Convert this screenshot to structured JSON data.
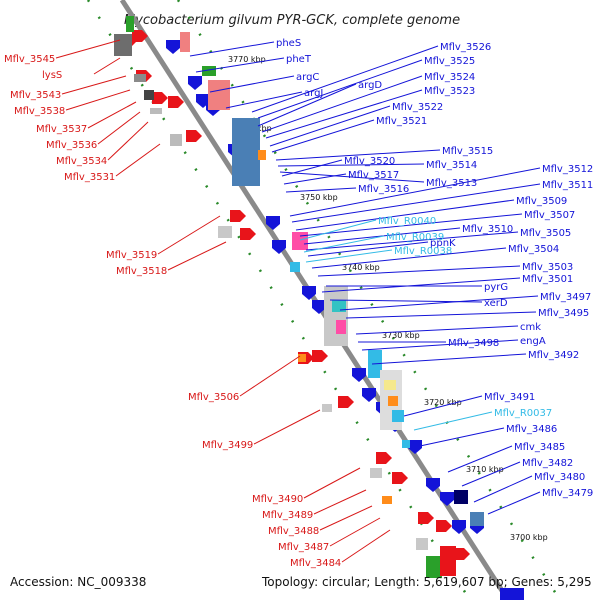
{
  "title": "Mycobacterium gilvum PYR-GCK, complete genome",
  "footer": {
    "accession": "Accession: NC_009338",
    "summary": "Topology: circular; Length: 5,619,607 bp; Genes: 5,295"
  },
  "ticks": [
    "3770 kbp",
    "3760 kbp",
    "3750 kbp",
    "3740 kbp",
    "3730 kbp",
    "3720 kbp",
    "3710 kbp",
    "3700 kbp"
  ],
  "colors": {
    "forward": "#e8141a",
    "reverse": "#1414d8",
    "rna": "#33bbe6",
    "backbone": "#8a8a8a"
  },
  "left_labels": [
    "Mflv_3545",
    "lysS",
    "Mflv_3543",
    "Mflv_3538",
    "Mflv_3537",
    "Mflv_3536",
    "Mflv_3534",
    "Mflv_3531",
    "Mflv_3519",
    "Mflv_3518",
    "Mflv_3506",
    "Mflv_3499",
    "Mflv_3490",
    "Mflv_3489",
    "Mflv_3488",
    "Mflv_3487",
    "Mflv_3484"
  ],
  "right_labels": [
    "pheS",
    "pheT",
    "argC",
    "argJ",
    "Mflv_3526",
    "Mflv_3525",
    "argD",
    "Mflv_3524",
    "Mflv_3523",
    "Mflv_3522",
    "Mflv_3521",
    "Mflv_3520",
    "Mflv_3515",
    "Mflv_3517",
    "Mflv_3514",
    "Mflv_3516",
    "Mflv_3513",
    "Mflv_3512",
    "Mflv_3511",
    "Mflv_3509",
    "Mflv_3507",
    "Mflv_R0040",
    "Mflv_3510",
    "Mflv_3505",
    "Mflv_R0039",
    "ppnK",
    "Mflv_R0038",
    "Mflv_3504",
    "Mflv_3503",
    "pyrG",
    "Mflv_3501",
    "xerD",
    "Mflv_3497",
    "Mflv_3495",
    "cmk",
    "Mflv_3498",
    "engA",
    "Mflv_3492",
    "Mflv_3491",
    "Mflv_R0037",
    "Mflv_3486",
    "Mflv_3485",
    "Mflv_3482",
    "Mflv_3480",
    "Mflv_3479"
  ]
}
